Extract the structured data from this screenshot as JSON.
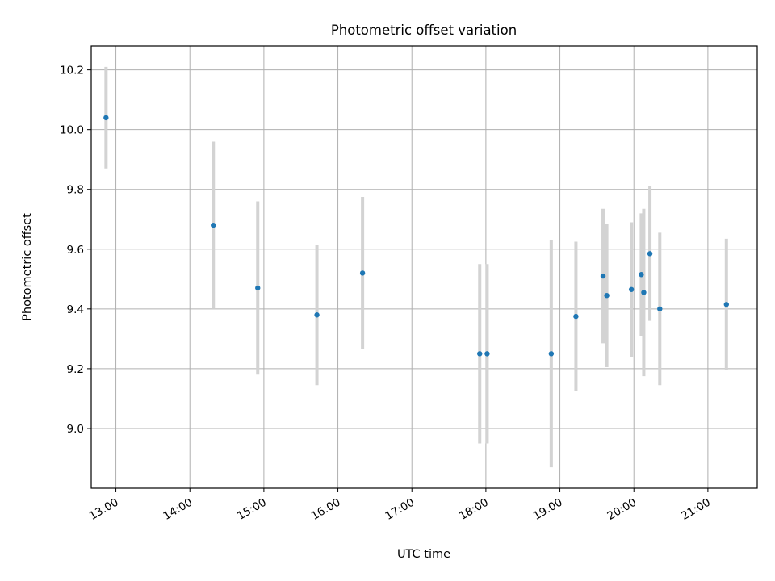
{
  "chart_data": {
    "type": "scatter",
    "title": "Photometric offset variation",
    "xlabel": "UTC time",
    "ylabel": "Photometric offset",
    "x_unit": "UTC time (HH:MM)",
    "xlim": [
      "12:40",
      "21:40"
    ],
    "ylim": [
      8.8,
      10.28
    ],
    "x_ticks": [
      "13:00",
      "14:00",
      "15:00",
      "16:00",
      "17:00",
      "18:00",
      "19:00",
      "20:00",
      "21:00"
    ],
    "y_ticks": [
      9.0,
      9.2,
      9.4,
      9.6,
      9.8,
      10.0,
      10.2
    ],
    "y_tick_labels": [
      "9.0",
      "9.2",
      "9.4",
      "9.6",
      "9.8",
      "10.0",
      "10.2"
    ],
    "grid": true,
    "x_tick_rotation_deg": 30,
    "series": [
      {
        "marker_color": "#1f77b4",
        "errorbar_color": "#d3d3d3",
        "points": [
          {
            "time": "12:52",
            "y": 10.04,
            "yerr": 0.17
          },
          {
            "time": "14:19",
            "y": 9.68,
            "yerr": 0.28
          },
          {
            "time": "14:55",
            "y": 9.47,
            "yerr": 0.29
          },
          {
            "time": "15:43",
            "y": 9.38,
            "yerr": 0.235
          },
          {
            "time": "16:20",
            "y": 9.52,
            "yerr": 0.255
          },
          {
            "time": "17:55",
            "y": 9.25,
            "yerr": 0.3
          },
          {
            "time": "18:01",
            "y": 9.25,
            "yerr": 0.3
          },
          {
            "time": "18:53",
            "y": 9.25,
            "yerr": 0.38
          },
          {
            "time": "19:13",
            "y": 9.375,
            "yerr": 0.25
          },
          {
            "time": "19:35",
            "y": 9.51,
            "yerr": 0.225
          },
          {
            "time": "19:38",
            "y": 9.445,
            "yerr": 0.24
          },
          {
            "time": "19:58",
            "y": 9.465,
            "yerr": 0.225
          },
          {
            "time": "20:06",
            "y": 9.515,
            "yerr": 0.205
          },
          {
            "time": "20:08",
            "y": 9.455,
            "yerr": 0.28
          },
          {
            "time": "20:13",
            "y": 9.585,
            "yerr": 0.225
          },
          {
            "time": "20:21",
            "y": 9.4,
            "yerr": 0.255
          },
          {
            "time": "21:15",
            "y": 9.415,
            "yerr": 0.22
          }
        ]
      }
    ]
  }
}
